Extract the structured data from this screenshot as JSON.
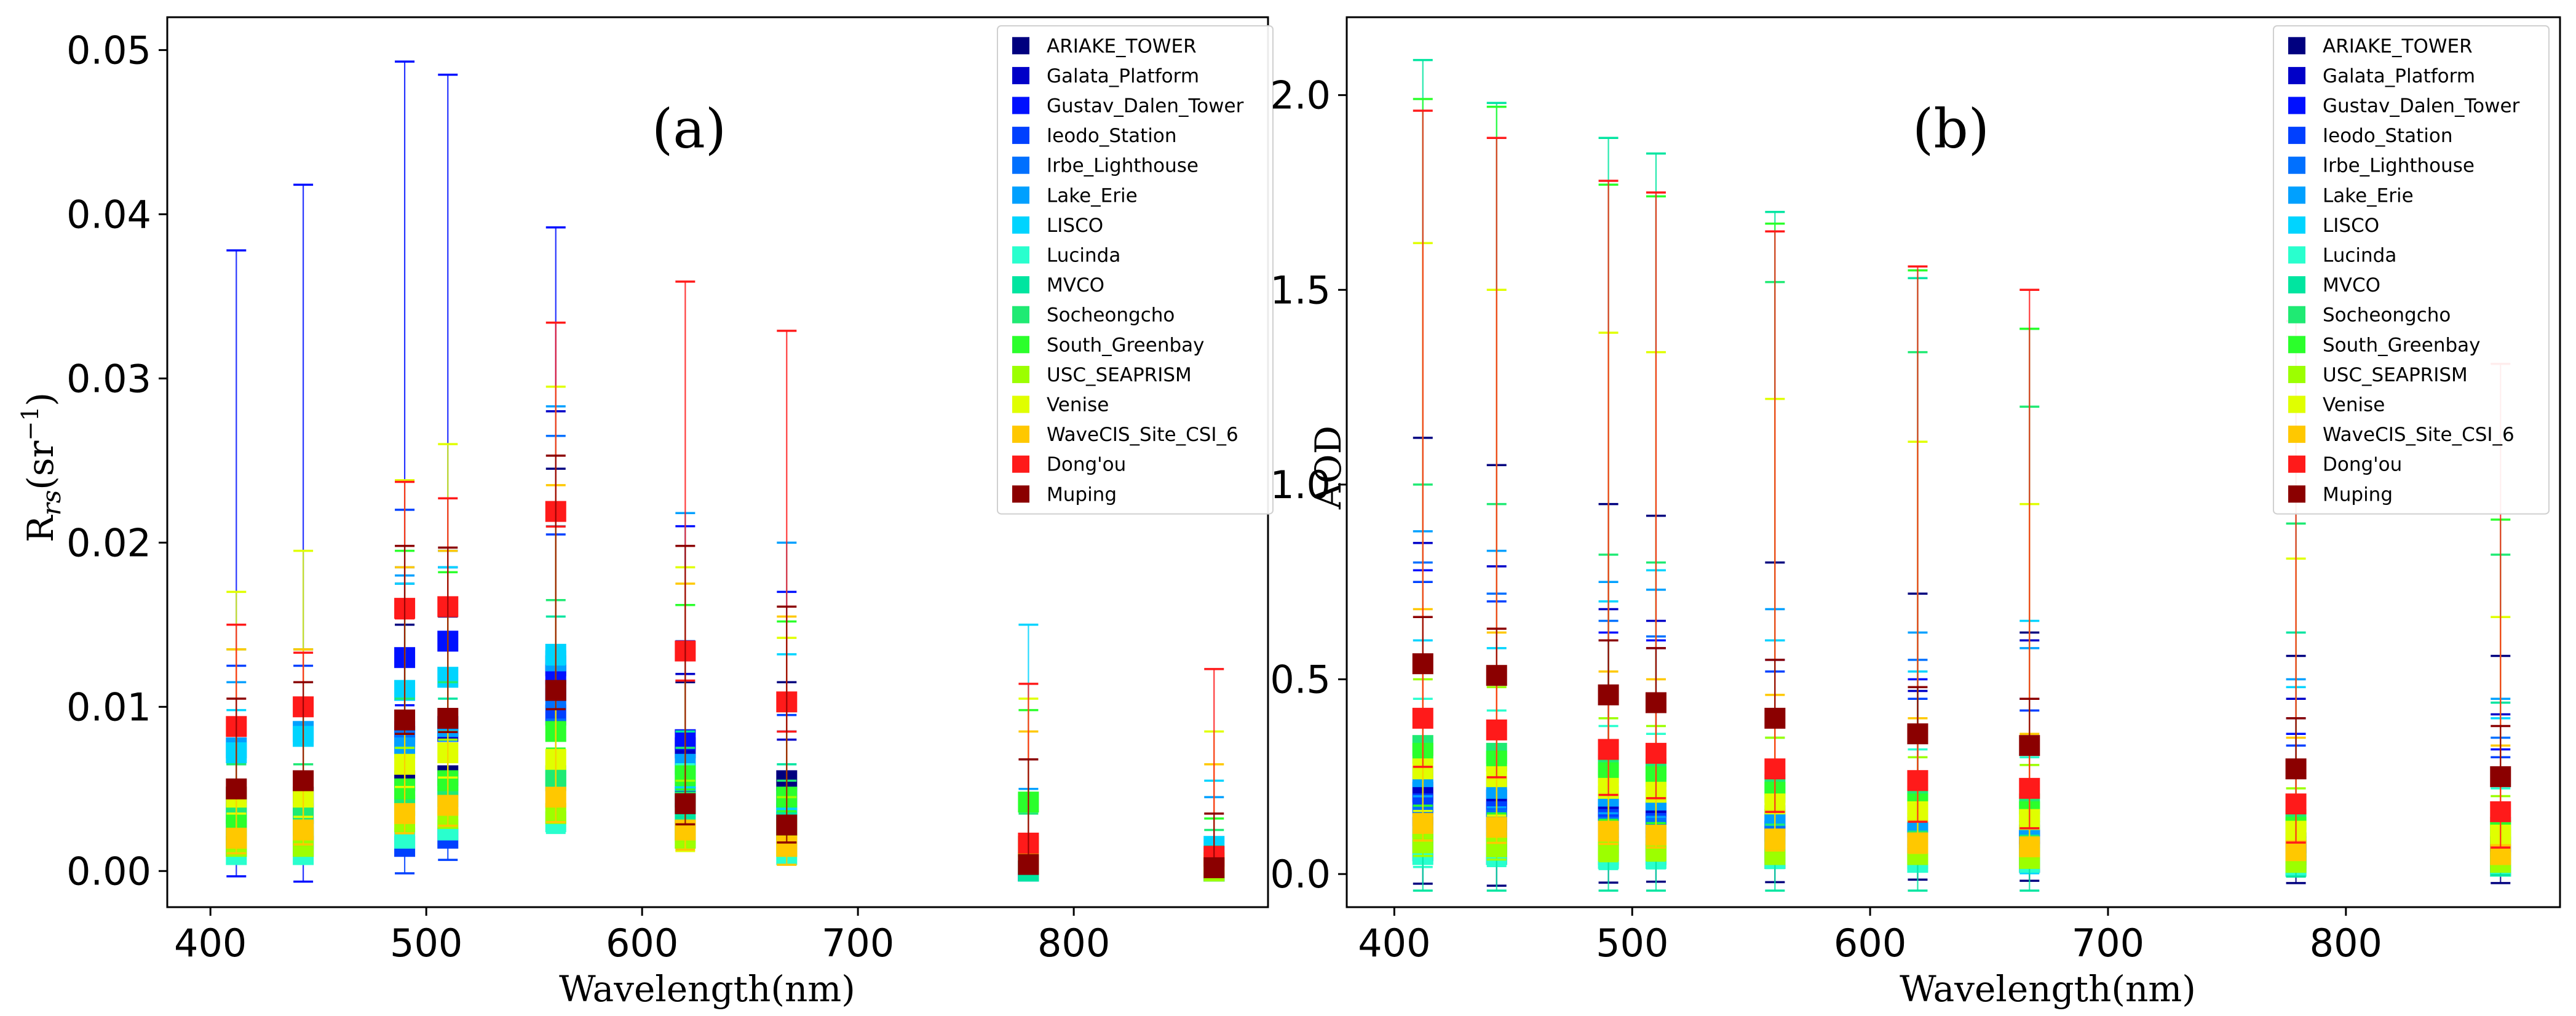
{
  "chart_data": [
    {
      "type": "scatter",
      "panel_label": "(a)",
      "xlabel": "Wavelength(nm)",
      "ylabel_main": "R",
      "ylabel_sub": "rs",
      "ylabel_unit": "(sr",
      "ylabel_exp": "−1",
      "ylabel_close": ")",
      "xlim": [
        380,
        890
      ],
      "ylim": [
        -0.0022,
        0.052
      ],
      "xticks": [
        400,
        500,
        600,
        700,
        800
      ],
      "xtick_labels": [
        "400",
        "500",
        "600",
        "700",
        "800"
      ],
      "yticks": [
        0.0,
        0.01,
        0.02,
        0.03,
        0.04,
        0.05
      ],
      "ytick_labels": [
        "0.00",
        "0.01",
        "0.02",
        "0.03",
        "0.04",
        "0.05"
      ],
      "legend_position": "top-right",
      "wavelengths": [
        412,
        443,
        490,
        510,
        560,
        620,
        667,
        779,
        865
      ],
      "series": [
        {
          "name": "ARIAKE_TOWER",
          "color": "#00007f",
          "means": [
            0.0015,
            0.0015,
            0.0055,
            0.0058,
            0.011,
            0.0045,
            0.0055,
            0.0,
            0.0
          ],
          "maxes": [
            0.0055,
            0.0055,
            0.015,
            0.0155,
            0.0245,
            0.0115,
            0.0115,
            0.001,
            0.001
          ]
        },
        {
          "name": "Galata_Platform",
          "color": "#0000c8",
          "means": [
            0.0045,
            0.0045,
            0.0082,
            0.0085,
            0.0125,
            0.0075,
            0.0045,
            0.0,
            0.0
          ],
          "maxes": [
            0.0065,
            0.0065,
            0.0175,
            0.0185,
            0.028,
            0.012,
            0.008,
            0.001,
            0.001
          ]
        },
        {
          "name": "Gustav_Dalen_Tower",
          "color": "#0010ff",
          "means": [
            0.0025,
            0.0025,
            0.013,
            0.014,
            0.012,
            0.008,
            0.0025,
            0.0,
            0.0
          ],
          "maxes": [
            0.0378,
            0.0418,
            0.0493,
            0.0485,
            0.0392,
            0.021,
            0.017,
            0.0015,
            0.0012
          ]
        },
        {
          "name": "Ieodo_Station",
          "color": "#0040ff",
          "means": [
            0.0045,
            0.0045,
            0.0015,
            0.002,
            0.0095,
            0.0025,
            0.0035,
            0.0,
            0.0
          ],
          "maxes": [
            0.0125,
            0.0125,
            0.022,
            0.0185,
            0.0205,
            0.014,
            0.0095,
            0.0015,
            0.0012
          ]
        },
        {
          "name": "Irbe_Lighthouse",
          "color": "#0070ff",
          "means": [
            0.0035,
            0.0035,
            0.0085,
            0.0088,
            0.0105,
            0.0025,
            0.0025,
            0.0,
            0.0
          ],
          "maxes": [
            0.0085,
            0.0085,
            0.0185,
            0.0195,
            0.0265,
            0.0135,
            0.0085,
            0.0015,
            0.0012
          ]
        },
        {
          "name": "Lake_Erie",
          "color": "#00a0ff",
          "means": [
            0.0075,
            0.0085,
            0.0075,
            0.0088,
            0.0128,
            0.0065,
            0.0045,
            0.0005,
            0.0005
          ],
          "maxes": [
            0.0115,
            0.0135,
            0.018,
            0.0195,
            0.0283,
            0.0218,
            0.02,
            0.005,
            0.0045
          ]
        },
        {
          "name": "LISCO",
          "color": "#00d4ff",
          "means": [
            0.0072,
            0.0082,
            0.011,
            0.0118,
            0.0132,
            0.0055,
            0.0035,
            0.0015,
            0.0015
          ],
          "maxes": [
            0.0098,
            0.0115,
            0.0175,
            0.0185,
            0.021,
            0.0162,
            0.0132,
            0.015,
            0.0055
          ]
        },
        {
          "name": "Lucinda",
          "color": "#29ffce",
          "means": [
            0.001,
            0.001,
            0.002,
            0.0025,
            0.003,
            0.002,
            0.001,
            0.0,
            0.0
          ],
          "maxes": [
            0.0035,
            0.0035,
            0.0075,
            0.0085,
            0.0115,
            0.0065,
            0.0045,
            0.001,
            0.001
          ]
        },
        {
          "name": "MVCO",
          "color": "#00e5a0",
          "means": [
            0.002,
            0.002,
            0.004,
            0.0045,
            0.0055,
            0.0035,
            0.003,
            0.0,
            0.0
          ],
          "maxes": [
            0.0045,
            0.0045,
            0.0095,
            0.0105,
            0.0155,
            0.0085,
            0.0065,
            0.0015,
            0.0015
          ]
        },
        {
          "name": "Socheongcho",
          "color": "#1fea73",
          "means": [
            0.0035,
            0.0035,
            0.0045,
            0.0052,
            0.0058,
            0.0042,
            0.0022,
            0.0015,
            0.0005
          ],
          "maxes": [
            0.0065,
            0.0065,
            0.0105,
            0.0115,
            0.0165,
            0.0075,
            0.0055,
            0.0035,
            0.0025
          ]
        },
        {
          "name": "South_Greenbay",
          "color": "#2bff2b",
          "means": [
            0.0028,
            0.0025,
            0.005,
            0.0055,
            0.0085,
            0.0058,
            0.0045,
            0.0042,
            0.0005
          ],
          "maxes": [
            0.0135,
            0.0135,
            0.0195,
            0.0182,
            0.0215,
            0.0162,
            0.0152,
            0.0098,
            0.0032
          ]
        },
        {
          "name": "USC_SEAPRISM",
          "color": "#9cff00",
          "means": [
            0.0015,
            0.0015,
            0.003,
            0.0032,
            0.0035,
            0.002,
            0.0015,
            0.0005,
            0.0
          ],
          "maxes": [
            0.0045,
            0.0045,
            0.0075,
            0.008,
            0.0105,
            0.0055,
            0.0045,
            0.002,
            0.001
          ]
        },
        {
          "name": "Venise",
          "color": "#e0ff00",
          "means": [
            0.0045,
            0.0045,
            0.0065,
            0.0072,
            0.0068,
            0.0025,
            0.0025,
            0.0015,
            0.0005
          ],
          "maxes": [
            0.017,
            0.0195,
            0.0238,
            0.026,
            0.0295,
            0.0185,
            0.0142,
            0.0105,
            0.0085
          ]
        },
        {
          "name": "WaveCIS_Site_CSI_6",
          "color": "#ffc800",
          "means": [
            0.002,
            0.0025,
            0.0035,
            0.004,
            0.0045,
            0.0025,
            0.0015,
            0.0005,
            0.0002
          ],
          "maxes": [
            0.0135,
            0.0135,
            0.0185,
            0.0195,
            0.0235,
            0.0175,
            0.0155,
            0.0085,
            0.0065
          ]
        },
        {
          "name": "Dong'ou",
          "color": "#ff1a1a",
          "means": [
            0.0088,
            0.01,
            0.016,
            0.0161,
            0.0219,
            0.0134,
            0.0103,
            0.0017,
            0.0009
          ],
          "maxes": [
            0.015,
            0.0133,
            0.0237,
            0.0227,
            0.0334,
            0.0359,
            0.0329,
            0.0114,
            0.0123
          ]
        },
        {
          "name": "Muping",
          "color": "#8b0000",
          "means": [
            0.005,
            0.0055,
            0.0092,
            0.0093,
            0.011,
            0.0041,
            0.0028,
            0.0004,
            0.0002
          ],
          "maxes": [
            0.0105,
            0.0115,
            0.0198,
            0.0197,
            0.0253,
            0.0198,
            0.0161,
            0.0068,
            0.0035
          ]
        }
      ]
    },
    {
      "type": "scatter",
      "panel_label": "(b)",
      "xlabel": "Wavelength(nm)",
      "ylabel": "AOD",
      "xlim": [
        380,
        890
      ],
      "ylim": [
        -0.085,
        2.2
      ],
      "xticks": [
        400,
        500,
        600,
        700,
        800
      ],
      "xtick_labels": [
        "400",
        "500",
        "600",
        "700",
        "800"
      ],
      "yticks": [
        0.0,
        0.5,
        1.0,
        1.5,
        2.0
      ],
      "ytick_labels": [
        "0.0",
        "0.5",
        "1.0",
        "1.5",
        "2.0"
      ],
      "legend_position": "top-right",
      "wavelengths": [
        412,
        443,
        490,
        510,
        560,
        620,
        667,
        779,
        865
      ],
      "series": [
        {
          "name": "ARIAKE_TOWER",
          "color": "#00007f",
          "means": [
            0.06,
            0.05,
            0.05,
            0.05,
            0.04,
            0.04,
            0.03,
            0.02,
            0.02
          ],
          "maxes": [
            1.12,
            1.05,
            0.95,
            0.92,
            0.8,
            0.72,
            0.62,
            0.56,
            0.56
          ]
        },
        {
          "name": "Galata_Platform",
          "color": "#0000c8",
          "means": [
            0.21,
            0.19,
            0.17,
            0.16,
            0.14,
            0.12,
            0.1,
            0.08,
            0.07
          ],
          "maxes": [
            0.85,
            0.79,
            0.68,
            0.65,
            0.6,
            0.47,
            0.6,
            0.45,
            0.41
          ]
        },
        {
          "name": "Gustav_Dalen_Tower",
          "color": "#0010ff",
          "means": [
            0.12,
            0.11,
            0.1,
            0.1,
            0.09,
            0.08,
            0.07,
            0.05,
            0.05
          ],
          "maxes": [
            0.78,
            0.72,
            0.62,
            0.6,
            0.55,
            0.5,
            0.45,
            0.36,
            0.32
          ]
        },
        {
          "name": "Ieodo_Station",
          "color": "#0040ff",
          "means": [
            0.18,
            0.16,
            0.14,
            0.13,
            0.11,
            0.1,
            0.09,
            0.07,
            0.06
          ],
          "maxes": [
            0.75,
            0.7,
            0.6,
            0.58,
            0.52,
            0.45,
            0.42,
            0.33,
            0.3
          ]
        },
        {
          "name": "Irbe_Lighthouse",
          "color": "#0070ff",
          "means": [
            0.15,
            0.14,
            0.12,
            0.12,
            0.11,
            0.09,
            0.08,
            0.06,
            0.05
          ],
          "maxes": [
            0.8,
            0.72,
            0.65,
            0.61,
            0.6,
            0.55,
            0.45,
            0.4,
            0.35
          ]
        },
        {
          "name": "Lake_Erie",
          "color": "#00a0ff",
          "means": [
            0.25,
            0.22,
            0.2,
            0.19,
            0.15,
            0.13,
            0.11,
            0.08,
            0.07
          ],
          "maxes": [
            0.88,
            0.83,
            0.75,
            0.73,
            0.68,
            0.62,
            0.58,
            0.5,
            0.45
          ]
        },
        {
          "name": "LISCO",
          "color": "#00d4ff",
          "means": [
            0.1,
            0.09,
            0.08,
            0.08,
            0.07,
            0.06,
            0.05,
            0.03,
            0.03
          ],
          "maxes": [
            0.6,
            0.58,
            0.7,
            0.78,
            0.6,
            0.52,
            0.65,
            0.48,
            0.4
          ]
        },
        {
          "name": "Lucinda",
          "color": "#29ffce",
          "means": [
            0.05,
            0.05,
            0.04,
            0.04,
            0.04,
            0.03,
            0.03,
            0.02,
            0.02
          ],
          "maxes": [
            0.45,
            0.42,
            0.38,
            0.36,
            0.35,
            0.32,
            0.3,
            0.25,
            0.22
          ]
        },
        {
          "name": "MVCO",
          "color": "#00e5a0",
          "means": [
            0.09,
            0.08,
            0.07,
            0.07,
            0.06,
            0.05,
            0.05,
            0.04,
            0.03
          ],
          "maxes": [
            2.09,
            1.98,
            1.89,
            1.85,
            1.7,
            1.53,
            1.4,
            0.62,
            0.44
          ]
        },
        {
          "name": "Socheongcho",
          "color": "#1fea73",
          "means": [
            0.33,
            0.31,
            0.28,
            0.27,
            0.23,
            0.2,
            0.18,
            0.14,
            0.12
          ],
          "maxes": [
            1.0,
            0.95,
            0.82,
            0.8,
            1.52,
            1.34,
            1.2,
            0.9,
            0.82
          ]
        },
        {
          "name": "South_Greenbay",
          "color": "#2bff2b",
          "means": [
            0.31,
            0.29,
            0.26,
            0.25,
            0.21,
            0.18,
            0.16,
            0.12,
            0.11
          ],
          "maxes": [
            1.99,
            1.97,
            1.77,
            1.74,
            1.67,
            1.55,
            1.4,
            1.38,
            0.91
          ]
        },
        {
          "name": "USC_SEAPRISM",
          "color": "#9cff00",
          "means": [
            0.08,
            0.07,
            0.06,
            0.06,
            0.05,
            0.05,
            0.04,
            0.03,
            0.03
          ],
          "maxes": [
            0.5,
            0.48,
            0.4,
            0.38,
            0.35,
            0.3,
            0.28,
            0.22,
            0.2
          ]
        },
        {
          "name": "Venise",
          "color": "#e0ff00",
          "means": [
            0.27,
            0.25,
            0.22,
            0.21,
            0.18,
            0.16,
            0.14,
            0.11,
            0.1
          ],
          "maxes": [
            1.62,
            1.5,
            1.39,
            1.34,
            1.22,
            1.11,
            0.95,
            0.81,
            0.66
          ]
        },
        {
          "name": "WaveCIS_Site_CSI_6",
          "color": "#ffc800",
          "means": [
            0.13,
            0.12,
            0.11,
            0.1,
            0.09,
            0.08,
            0.07,
            0.06,
            0.05
          ],
          "maxes": [
            0.68,
            0.62,
            0.52,
            0.5,
            0.46,
            0.4,
            0.36,
            0.35,
            0.33
          ]
        },
        {
          "name": "Dong'ou",
          "color": "#ff1a1a",
          "means": [
            0.4,
            0.37,
            0.32,
            0.31,
            0.27,
            0.24,
            0.22,
            0.18,
            0.16
          ],
          "maxes": [
            1.96,
            1.89,
            1.78,
            1.75,
            1.65,
            1.56,
            1.5,
            1.42,
            1.31
          ]
        },
        {
          "name": "Muping",
          "color": "#8b0000",
          "means": [
            0.54,
            0.51,
            0.46,
            0.44,
            0.4,
            0.36,
            0.33,
            0.27,
            0.25
          ],
          "maxes": [
            0.66,
            0.63,
            0.6,
            0.58,
            0.55,
            0.48,
            0.45,
            0.4,
            0.38
          ]
        }
      ]
    }
  ]
}
